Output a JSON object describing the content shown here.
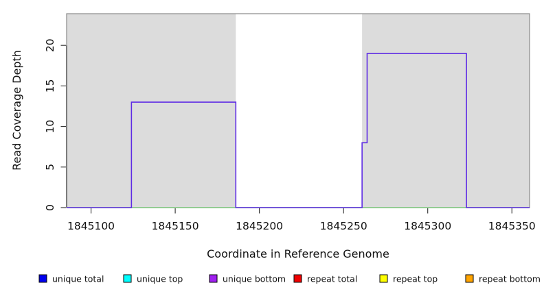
{
  "chart_data": {
    "type": "line",
    "subtype": "step-coverage-plot",
    "title": "",
    "xlabel": "Coordinate in Reference Genome",
    "ylabel": "Read Coverage Depth",
    "xlim": [
      1845085.5,
      1845360.5
    ],
    "ylim": [
      0,
      23.9
    ],
    "x_ticks": [
      1845100,
      1845150,
      1845200,
      1845250,
      1845300,
      1845350
    ],
    "y_ticks": [
      0,
      5,
      10,
      15,
      20
    ],
    "grid": "off",
    "legend_position": "bottom",
    "colors": {
      "shaded_band": "#DCDCDC",
      "plot_border": "#8A8A8A",
      "axis": "#2B2B2B",
      "baseline_green": "#7CC87C",
      "coverage_purple": "#5E2CE4"
    },
    "shaded_regions": [
      {
        "name": "aligned-block-left",
        "x0": 1845085.5,
        "x1": 1845186,
        "color": "#DCDCDC"
      },
      {
        "name": "aligned-block-right",
        "x0": 1845261,
        "x1": 1845360.5,
        "color": "#DCDCDC"
      }
    ],
    "series": [
      {
        "name": "zero-depth-baseline",
        "color": "#7CC87C",
        "width": 1.5,
        "segments": [
          {
            "from": 1845085.5,
            "to": 1845360.5,
            "value": 0
          }
        ]
      },
      {
        "name": "unique bottom coverage",
        "color": "#5E2CE4",
        "width": 1.6,
        "segments": [
          {
            "from": 1845085.5,
            "to": 1845124,
            "value": 0
          },
          {
            "from": 1845124,
            "to": 1845186,
            "value": 13
          },
          {
            "from": 1845186,
            "to": 1845261,
            "value": 0
          },
          {
            "from": 1845261,
            "to": 1845264,
            "value": 8
          },
          {
            "from": 1845264,
            "to": 1845323,
            "value": 19
          },
          {
            "from": 1845323,
            "to": 1845360.5,
            "value": 0
          }
        ]
      }
    ],
    "legend": [
      {
        "label": "unique total",
        "color": "#0000EE"
      },
      {
        "label": "unique top",
        "color": "#00FFFF"
      },
      {
        "label": "unique bottom",
        "color": "#A020F0"
      },
      {
        "label": "repeat total",
        "color": "#F00000"
      },
      {
        "label": "repeat top",
        "color": "#FFFF00"
      },
      {
        "label": "repeat bottom",
        "color": "#FFA500"
      }
    ]
  }
}
